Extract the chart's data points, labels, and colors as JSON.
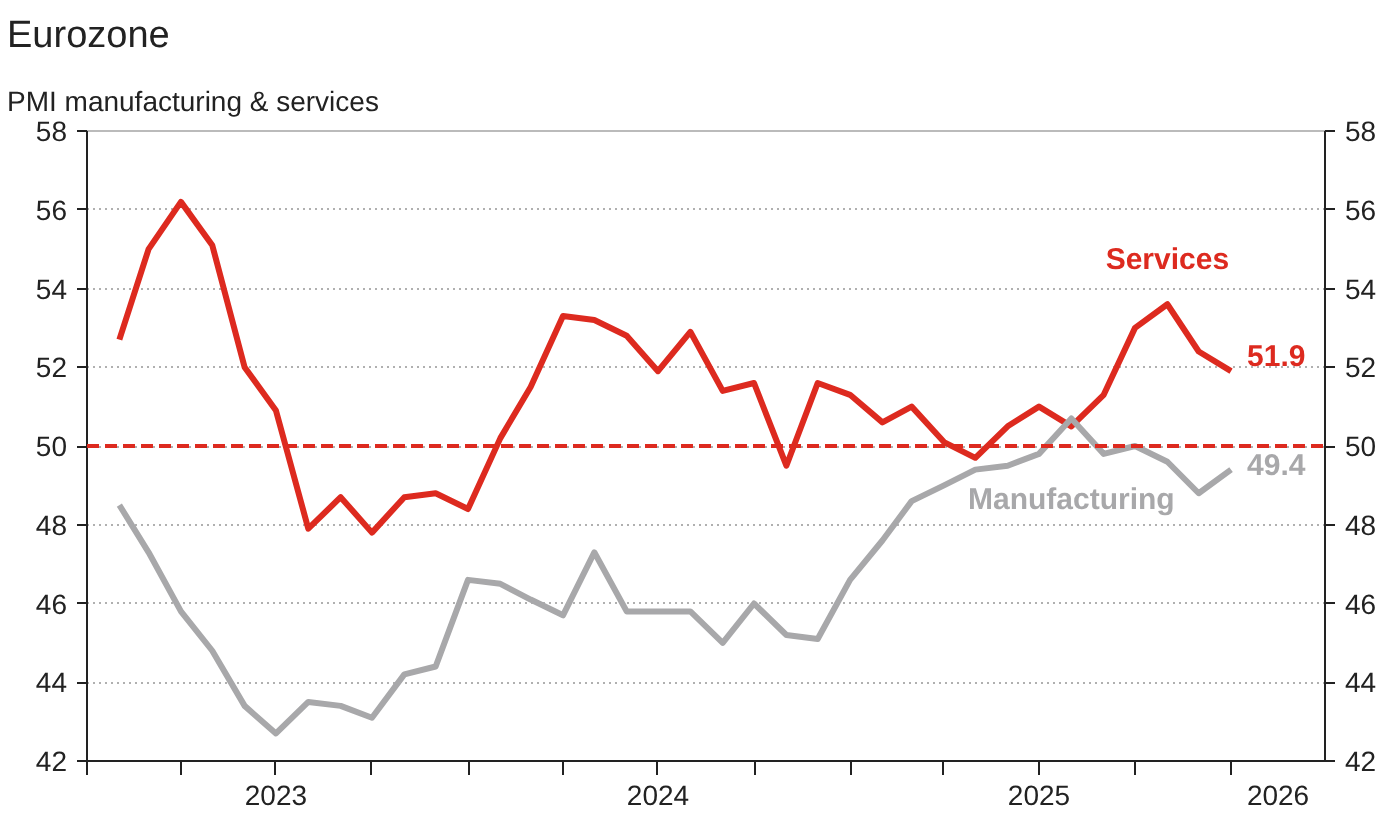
{
  "chart_data": {
    "type": "line",
    "title": "Eurozone",
    "subtitle": "PMI manufacturing & services",
    "x": [
      "2023-02",
      "2023-03",
      "2023-04",
      "2023-05",
      "2023-06",
      "2023-07",
      "2023-08",
      "2023-09",
      "2023-10",
      "2023-11",
      "2023-12",
      "2024-01",
      "2024-02",
      "2024-03",
      "2024-04",
      "2024-05",
      "2024-06",
      "2024-07",
      "2024-08",
      "2024-09",
      "2024-10",
      "2024-11",
      "2024-12",
      "2025-01",
      "2025-02",
      "2025-03",
      "2025-04",
      "2025-05",
      "2025-06",
      "2025-07",
      "2025-08",
      "2025-09",
      "2025-10",
      "2025-11",
      "2025-12",
      "2026-01"
    ],
    "series": [
      {
        "name": "Services",
        "color": "#dd2a1f",
        "values": [
          52.7,
          55.0,
          56.2,
          55.1,
          52.0,
          50.9,
          47.9,
          48.7,
          47.8,
          48.7,
          48.8,
          48.4,
          50.2,
          51.5,
          53.3,
          53.2,
          52.8,
          51.9,
          52.9,
          51.4,
          51.6,
          49.5,
          51.6,
          51.3,
          50.6,
          51.0,
          50.1,
          49.7,
          50.5,
          51.0,
          50.5,
          51.3,
          53.0,
          53.6,
          52.4,
          51.9
        ],
        "value_labels": [
          null,
          null,
          null,
          null,
          null,
          null,
          null,
          null,
          null,
          null,
          null,
          null,
          null,
          null,
          null,
          null,
          null,
          null,
          null,
          null,
          null,
          null,
          null,
          null,
          null,
          null,
          null,
          null,
          null,
          null,
          null,
          null,
          null,
          null,
          null,
          "51.9"
        ]
      },
      {
        "name": "Manufacturing",
        "color": "#a8a8aa",
        "values": [
          48.5,
          47.3,
          45.8,
          44.8,
          43.4,
          42.7,
          43.5,
          43.4,
          43.1,
          44.2,
          44.4,
          46.6,
          46.5,
          46.1,
          45.7,
          47.3,
          45.8,
          45.8,
          45.8,
          45.0,
          46.0,
          45.2,
          45.1,
          46.6,
          47.6,
          48.6,
          49.0,
          49.4,
          49.5,
          49.8,
          50.7,
          49.8,
          50.0,
          49.6,
          48.8,
          49.4
        ],
        "value_labels": [
          null,
          null,
          null,
          null,
          null,
          null,
          null,
          null,
          null,
          null,
          null,
          null,
          null,
          null,
          null,
          null,
          null,
          null,
          null,
          null,
          null,
          null,
          null,
          null,
          null,
          null,
          null,
          null,
          null,
          null,
          null,
          null,
          null,
          null,
          null,
          "49.4"
        ]
      }
    ],
    "xlim": [
      "2023-01-01",
      "2026-04-01"
    ],
    "xticks": [
      {
        "value": "2023-01-01",
        "label": null
      },
      {
        "value": "2023-04-01",
        "label": null
      },
      {
        "value": "2023-07-01",
        "label": "2023"
      },
      {
        "value": "2023-10-01",
        "label": null
      },
      {
        "value": "2024-01-01",
        "label": null
      },
      {
        "value": "2024-04-01",
        "label": null
      },
      {
        "value": "2024-07-01",
        "label": "2024"
      },
      {
        "value": "2024-10-01",
        "label": null
      },
      {
        "value": "2025-01-01",
        "label": null
      },
      {
        "value": "2025-04-01",
        "label": null
      },
      {
        "value": "2025-07-01",
        "label": "2025"
      },
      {
        "value": "2025-10-01",
        "label": null
      },
      {
        "value": "2026-01-01",
        "label": null
      },
      {
        "value": "2026-02-15",
        "label": "2026"
      }
    ],
    "ylim": [
      42,
      58
    ],
    "yticks": [
      42,
      44,
      46,
      48,
      50,
      52,
      54,
      56,
      58
    ],
    "y2lim": [
      42,
      58
    ],
    "y2ticks": [
      42,
      44,
      46,
      48,
      50,
      52,
      54,
      56,
      58
    ],
    "ref_lines": [
      {
        "axis": "y",
        "value": 50,
        "label": null,
        "color": "#dd2a1f",
        "line_style": "dashed"
      }
    ],
    "grid": "y"
  }
}
